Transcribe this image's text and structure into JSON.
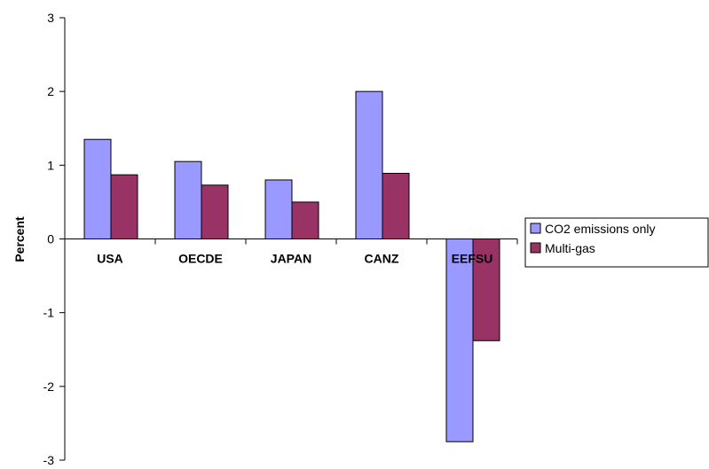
{
  "chart_data": {
    "type": "bar",
    "title": "",
    "xlabel": "",
    "ylabel": "Percent",
    "ylim": [
      -3,
      3
    ],
    "yticks": [
      "3",
      "2",
      "1",
      "0",
      "-1",
      "-2",
      "-3"
    ],
    "yticks_values": [
      3,
      2,
      1,
      0,
      -1,
      -2,
      -3
    ],
    "categories": [
      "USA",
      "OECDE",
      "JAPAN",
      "CANZ",
      "EEFSU"
    ],
    "series": [
      {
        "name": "CO2 emissions only",
        "color": "#9999ff",
        "values": [
          1.35,
          1.05,
          0.8,
          2.0,
          -2.75
        ]
      },
      {
        "name": "Multi-gas",
        "color": "#993366",
        "values": [
          0.87,
          0.73,
          0.5,
          0.89,
          -1.38
        ]
      }
    ],
    "grid": false,
    "legend": {
      "position": "right"
    }
  }
}
